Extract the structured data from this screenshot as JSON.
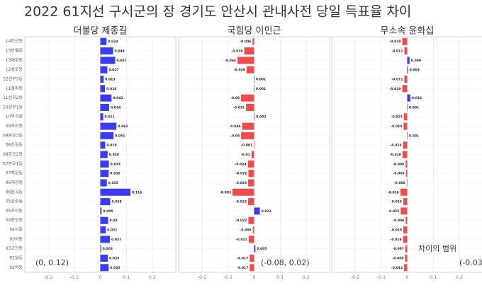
{
  "title": "2022 61지선 구시군의 장 경기도 안산시 관내사전 당일 득표율 차이",
  "chart_data": [
    {
      "type": "bar",
      "orientation": "horizontal",
      "title": "더불당 제종길",
      "categories": [
        "14안산동",
        "13반월동",
        "13대부동",
        "12성포동",
        "12선부3동",
        "11월피동",
        "11선부2동",
        "10선부1동",
        "10부곡동",
        "09초지동",
        "09본오3동",
        "08신길동",
        "08본오2동",
        "07본오1동",
        "07백운동",
        "06해양동",
        "06원곡동",
        "05호수동",
        "05사이동",
        "04중앙동",
        "04사동",
        "03이동",
        "03고잔동",
        "02일동",
        "02와동"
      ],
      "values": [
        0.024,
        0.049,
        0.057,
        0.027,
        0.013,
        0.018,
        0.043,
        0.034,
        0.011,
        0.062,
        0.051,
        0.019,
        0.028,
        0.033,
        0.032,
        0.025,
        0.116,
        0.038,
        0.005,
        0.03,
        0.021,
        0.037,
        0.003,
        0.029,
        0.032
      ],
      "positive_color": "#3b3bf5",
      "negative_color": "#f24b4b",
      "xlim": [
        -0.29,
        0.29
      ],
      "xticks": [
        -0.2,
        -0.1,
        0,
        0.1,
        0.2
      ],
      "grid": true,
      "annotation": "(0, 0.12)"
    },
    {
      "type": "bar",
      "orientation": "horizontal",
      "title": "국힘당 이민근",
      "values": [
        -0.006,
        -0.038,
        -0.064,
        -0.029,
        0.001,
        0.001,
        -0.05,
        -0.031,
        0.002,
        -0.046,
        -0.05,
        -0.001,
        -0.01,
        -0.024,
        -0.022,
        -0.023,
        -0.083,
        -0.023,
        0.022,
        -0.022,
        -0.005,
        -0.021,
        0.005,
        -0.017,
        -0.017
      ],
      "positive_color": "#3b3bf5",
      "negative_color": "#f24b4b",
      "xlim": [
        -0.29,
        0.29
      ],
      "xticks": [
        -0.2,
        -0.1,
        0,
        0.1,
        0.2
      ],
      "grid": true,
      "annotation": "(-0.08, 0.02)"
    },
    {
      "type": "bar",
      "orientation": "horizontal",
      "title": "무소속 윤화섭",
      "values": [
        -0.019,
        -0.011,
        0.009,
        0.003,
        -0.011,
        -0.019,
        0.012,
        0.001,
        -0.013,
        -0.014,
        0.001,
        -0.016,
        -0.018,
        -0.006,
        -0.005,
        -0.002,
        -0.026,
        -0.015,
        -0.025,
        -0.006,
        -0.015,
        -0.016,
        -0.007,
        -0.008,
        -0.012
      ],
      "positive_color": "#3b3bf5",
      "negative_color": "#f24b4b",
      "xlim": [
        -0.29,
        0.29
      ],
      "xticks": [
        -0.2,
        -0.1,
        0,
        0.1,
        0.2
      ],
      "grid": true,
      "annotation": "(-0.03",
      "note": "차이의 범위"
    }
  ]
}
